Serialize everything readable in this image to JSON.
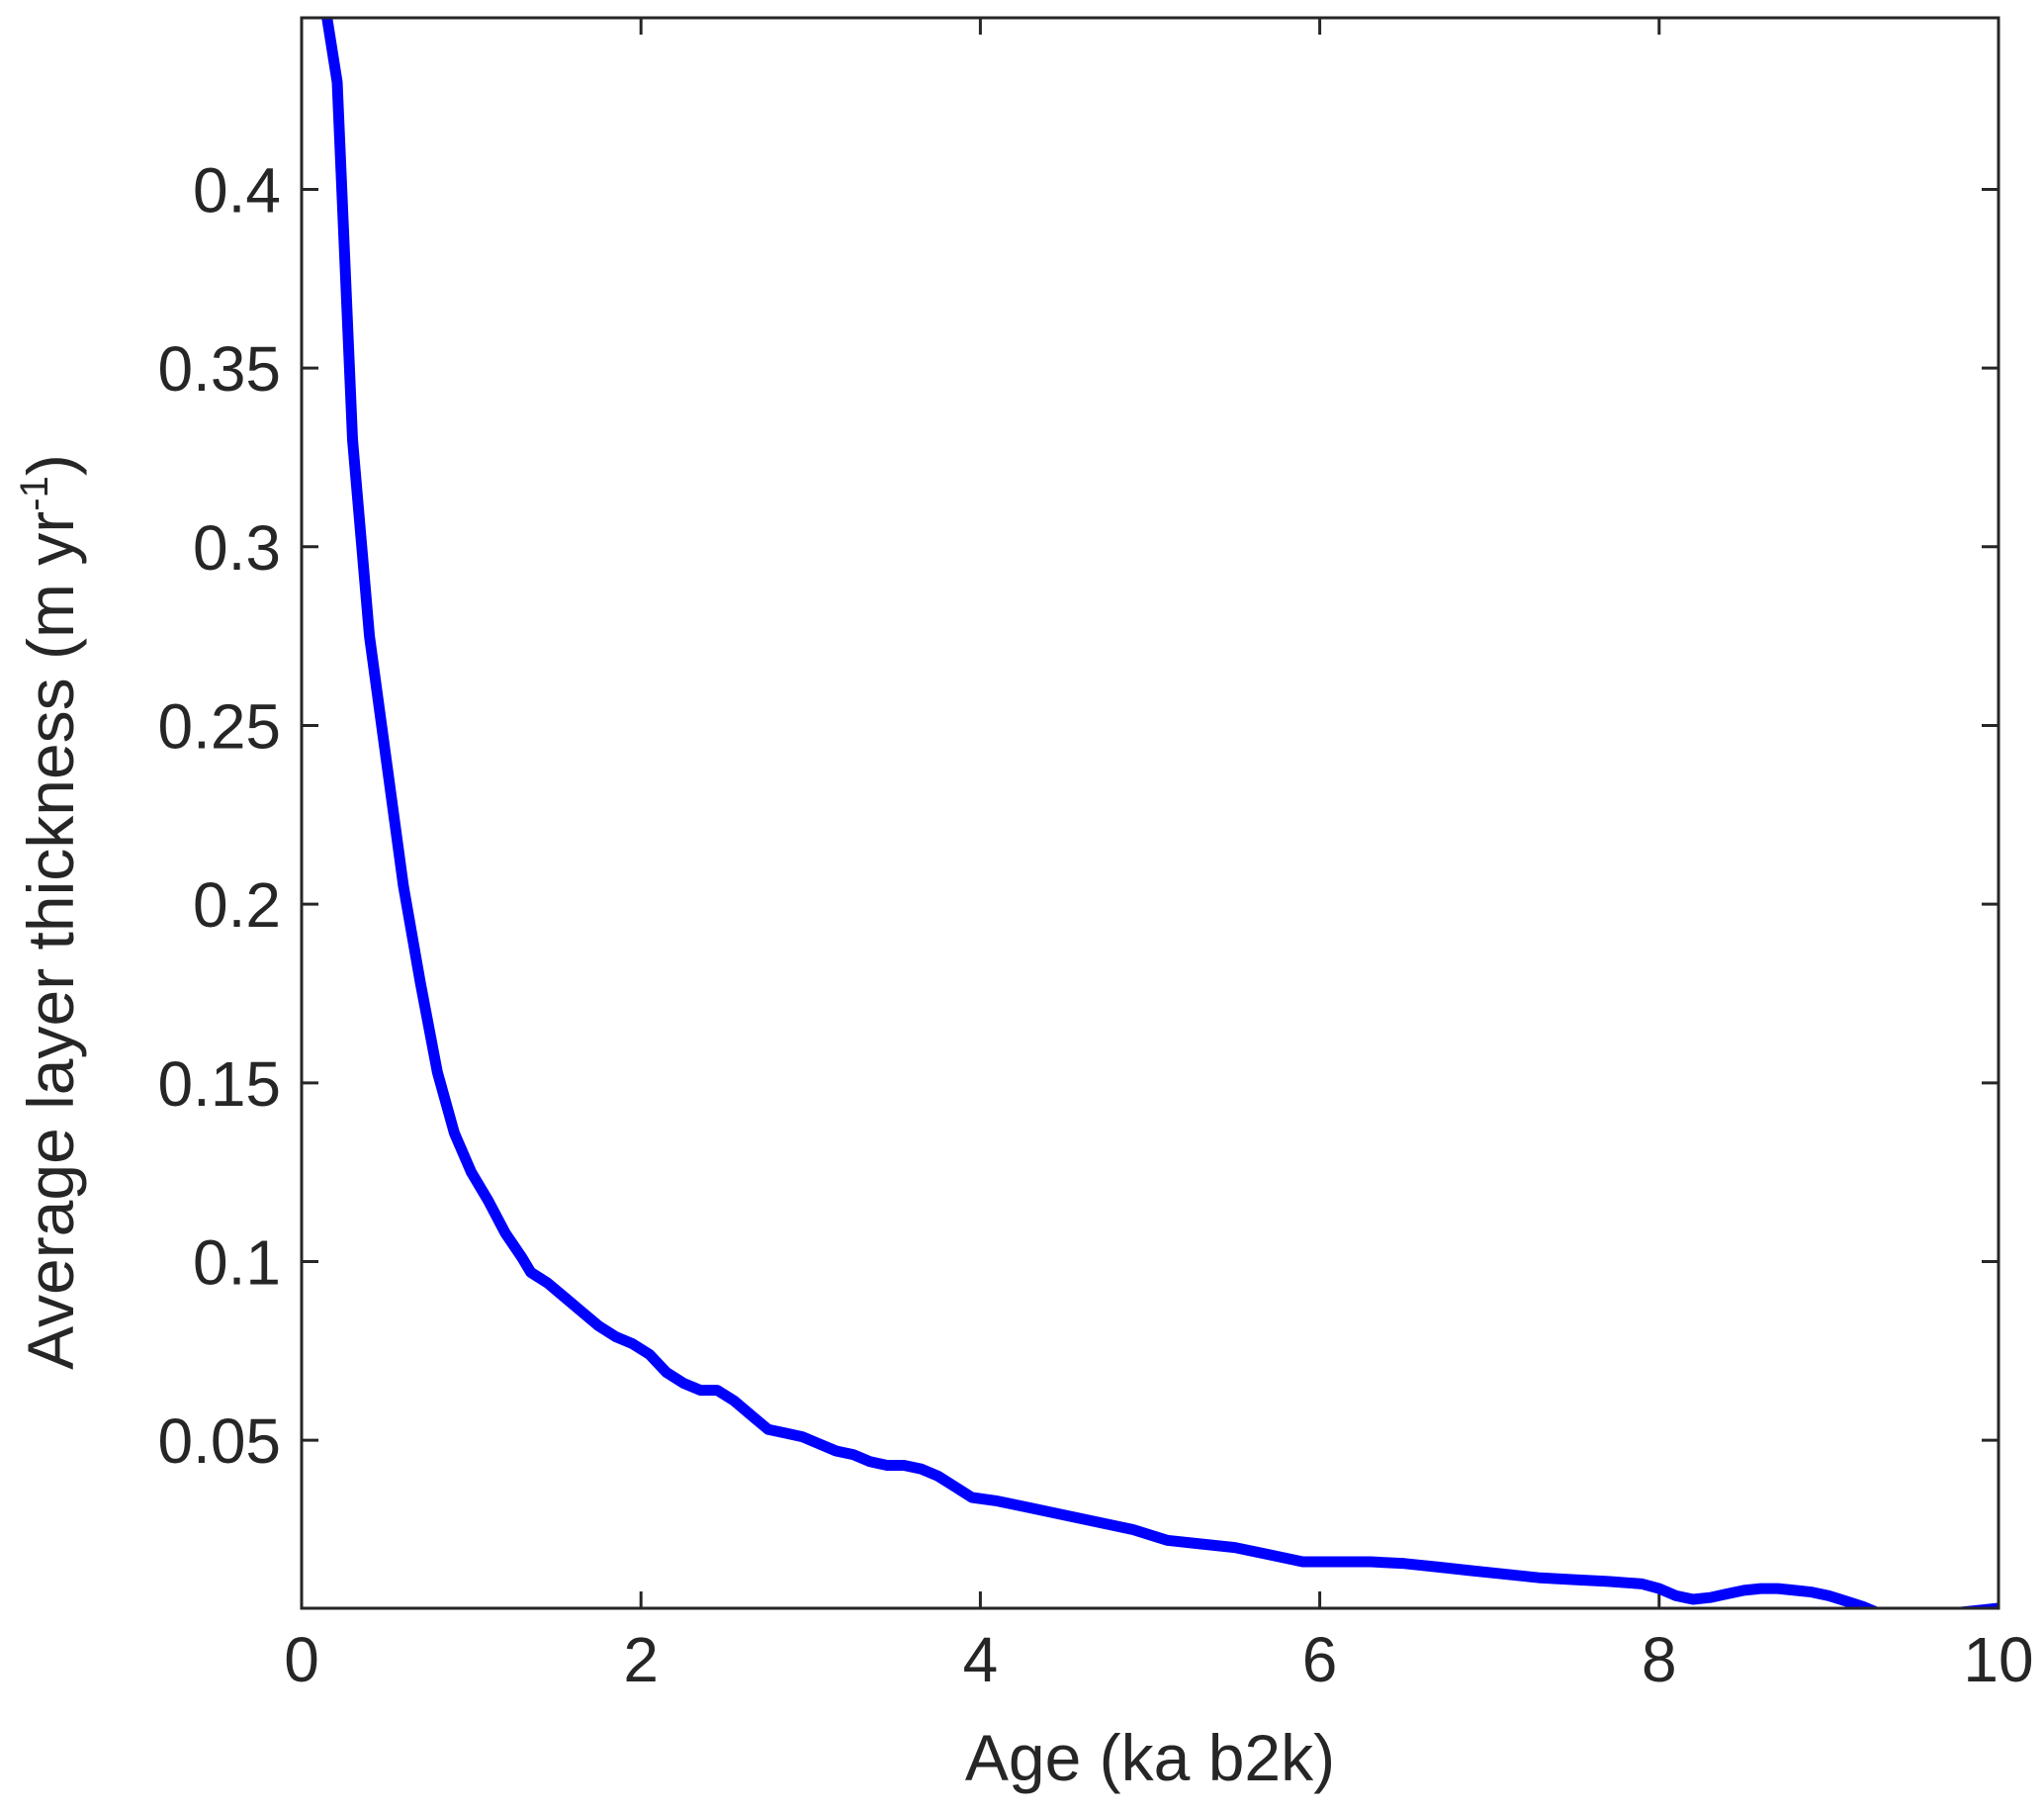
{
  "chart_data": {
    "type": "line",
    "xlabel": "Age (ka b2k)",
    "ylabel": {
      "main": "Average layer thickness (m yr",
      "superscript": "-1",
      "close": ")"
    },
    "xlim": [
      0,
      10
    ],
    "ylim": [
      0.003,
      0.448
    ],
    "x_ticks": [
      {
        "value": 0,
        "label": "0"
      },
      {
        "value": 2,
        "label": "2"
      },
      {
        "value": 4,
        "label": "4"
      },
      {
        "value": 6,
        "label": "6"
      },
      {
        "value": 8,
        "label": "8"
      },
      {
        "value": 10,
        "label": "10"
      }
    ],
    "y_ticks": [
      {
        "value": 0.05,
        "label": "0.05"
      },
      {
        "value": 0.1,
        "label": "0.1"
      },
      {
        "value": 0.15,
        "label": "0.15"
      },
      {
        "value": 0.2,
        "label": "0.2"
      },
      {
        "value": 0.25,
        "label": "0.25"
      },
      {
        "value": 0.3,
        "label": "0.3"
      },
      {
        "value": 0.35,
        "label": "0.35"
      },
      {
        "value": 0.4,
        "label": "0.4"
      }
    ],
    "grid": false,
    "line_color": "#0000ff",
    "axis_color": "#262626",
    "series": [
      {
        "x": [
          0.15,
          0.21,
          0.3,
          0.4,
          0.5,
          0.6,
          0.7,
          0.8,
          0.9,
          1.0,
          1.1,
          1.2,
          1.3,
          1.35,
          1.45,
          1.55,
          1.65,
          1.75,
          1.85,
          1.95,
          2.05,
          2.15,
          2.25,
          2.35,
          2.45,
          2.55,
          2.65,
          2.75,
          2.85,
          2.95,
          3.05,
          3.15,
          3.25,
          3.35,
          3.45,
          3.55,
          3.65,
          3.75,
          3.85,
          3.95,
          4.1,
          4.3,
          4.5,
          4.7,
          4.9,
          5.1,
          5.3,
          5.5,
          5.7,
          5.9,
          6.1,
          6.3,
          6.5,
          6.7,
          6.9,
          7.1,
          7.3,
          7.5,
          7.7,
          7.9,
          8.0,
          8.1,
          8.2,
          8.3,
          8.4,
          8.5,
          8.6,
          8.7,
          8.8,
          8.9,
          9.0,
          9.1,
          9.2,
          9.3,
          9.4,
          9.5,
          9.6,
          9.7,
          9.8,
          9.9,
          10.0
        ],
        "y": [
          0.448,
          0.43,
          0.33,
          0.275,
          0.24,
          0.205,
          0.178,
          0.153,
          0.136,
          0.125,
          0.117,
          0.108,
          0.101,
          0.097,
          0.094,
          0.09,
          0.086,
          0.082,
          0.079,
          0.077,
          0.074,
          0.069,
          0.066,
          0.064,
          0.064,
          0.061,
          0.057,
          0.053,
          0.052,
          0.051,
          0.049,
          0.047,
          0.046,
          0.044,
          0.043,
          0.043,
          0.042,
          0.04,
          0.037,
          0.034,
          0.033,
          0.031,
          0.029,
          0.027,
          0.025,
          0.022,
          0.021,
          0.02,
          0.018,
          0.016,
          0.016,
          0.016,
          0.0155,
          0.0145,
          0.0135,
          0.0125,
          0.0115,
          0.011,
          0.0105,
          0.0098,
          0.0085,
          0.0065,
          0.0055,
          0.006,
          0.007,
          0.008,
          0.0085,
          0.0085,
          0.008,
          0.0075,
          0.0065,
          0.005,
          0.0035,
          0.0015,
          0.0005,
          0.0005,
          0.001,
          0.0015,
          0.002,
          0.0025,
          0.003
        ]
      }
    ]
  }
}
